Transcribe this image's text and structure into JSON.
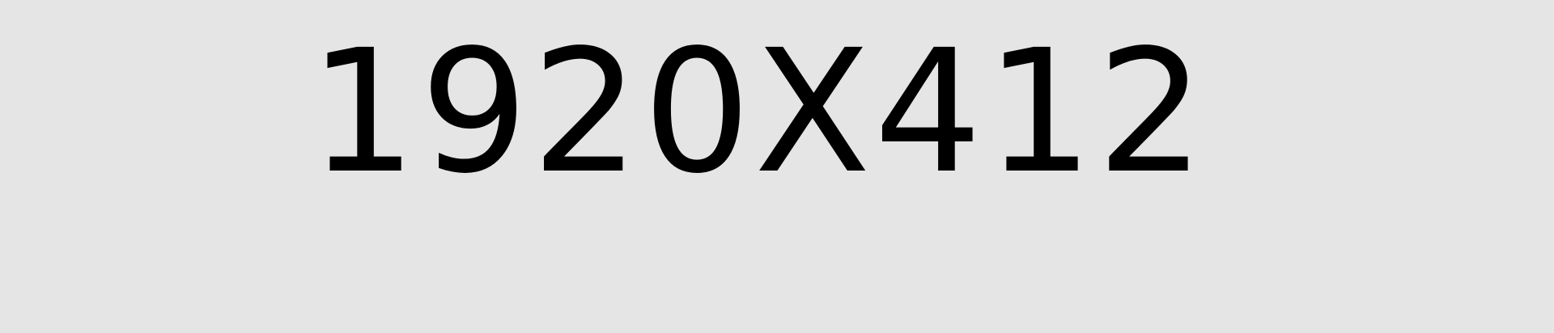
{
  "placeholder": {
    "label": "1920X412",
    "colors": {
      "background": "#e5e5e5",
      "text": "#000000"
    }
  }
}
